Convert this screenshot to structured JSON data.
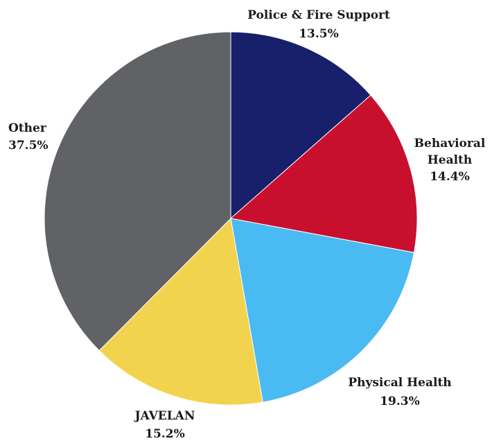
{
  "chart_data": {
    "type": "pie",
    "title": "",
    "start_angle_deg": 0,
    "direction": "clockwise",
    "slices": [
      {
        "label": "Police & Fire Support",
        "value": 13.5,
        "value_label": "13.5%",
        "color": "#18206b"
      },
      {
        "label": "Behavioral Health",
        "value": 14.4,
        "value_label": "14.4%",
        "color": "#c8102e"
      },
      {
        "label": "Physical Health",
        "value": 19.3,
        "value_label": "19.3%",
        "color": "#4abaf2"
      },
      {
        "label": "JAVELAN",
        "value": 15.2,
        "value_label": "15.2%",
        "color": "#f2d34d"
      },
      {
        "label": "Other",
        "value": 37.5,
        "value_label": "37.5%",
        "color": "#606266"
      }
    ]
  }
}
